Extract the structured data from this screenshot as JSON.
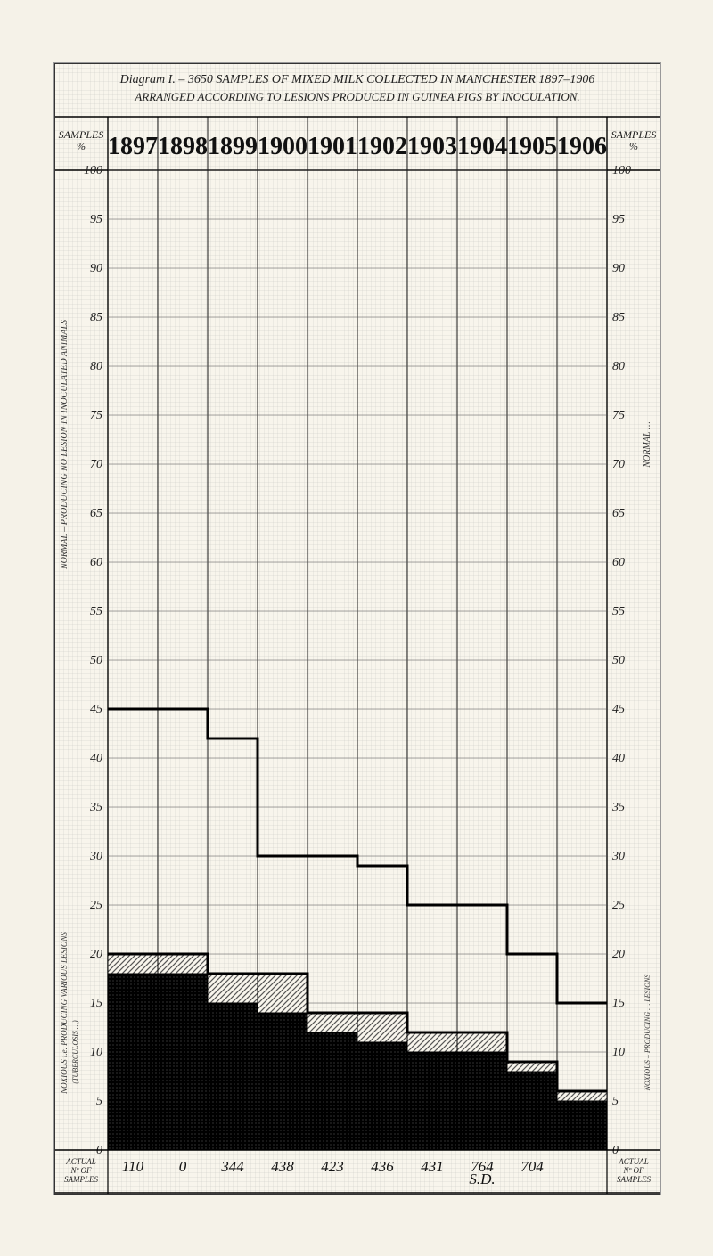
{
  "title_lines": [
    "Diagram I. – 3650 SAMPLES OF MIXED MILK COLLECTED IN MANCHESTER 1897–1906",
    "ARRANGED ACCORDING TO LESIONS PRODUCED IN GUINEA PIGS BY INOCULATION."
  ],
  "header_years": [
    "1897",
    "1898",
    "1899",
    "1900",
    "1901",
    "1902",
    "1903",
    "1904",
    "1905",
    "1906"
  ],
  "header_left": "SAMPLES\n%",
  "header_right": "SAMPLES\n%",
  "y_ticks": [
    0,
    5,
    10,
    15,
    20,
    25,
    30,
    35,
    40,
    45,
    50,
    55,
    60,
    65,
    70,
    75,
    80,
    85,
    90,
    95,
    100
  ],
  "footer_label_left": "ACTUAL\nNº OF\nSAMPLES",
  "footer_label_right": "ACTUAL\nNº OF\nSAMPLES",
  "footer_values": [
    "110",
    "0",
    "344",
    "438",
    "423",
    "436",
    "431",
    "764\nS.D.",
    "704",
    ""
  ],
  "left_side_label_top": "NORMAL – PRODUCING  NO LESION IN INOCULATED ANIMALS",
  "left_side_label_bottom_a": "NOXIOUS i.e. PRODUCING VARIOUS LESIONS",
  "left_side_label_bottom_b": "(TUBERCULOSIS …)",
  "right_side_label_top": "NORMAL …",
  "right_side_label_bottom": "NOXIOUS – PRODUCING … LESIONS",
  "chart": {
    "type": "bar",
    "background_color": "#f8f5ec",
    "grid_color_major": "#555555",
    "grid_color_minor": "#aaaaaa",
    "year_label_fontsize": 28,
    "tick_fontsize": 14,
    "title_fontsize": 14,
    "footer_fontsize": 13,
    "upper_line_y": [
      45,
      45,
      42,
      30,
      30,
      29,
      25,
      25,
      20,
      15
    ],
    "bar_hatched_top": [
      20,
      20,
      18,
      18,
      14,
      14,
      12,
      12,
      9,
      6
    ],
    "bar_solid_top": [
      18,
      18,
      15,
      14,
      12,
      11,
      10,
      10,
      8,
      5
    ],
    "colors": {
      "solid_black": "#1a1a1a",
      "hatched": "#555555",
      "line": "#000000"
    },
    "ylim": [
      0,
      100
    ],
    "n_years": 10
  }
}
